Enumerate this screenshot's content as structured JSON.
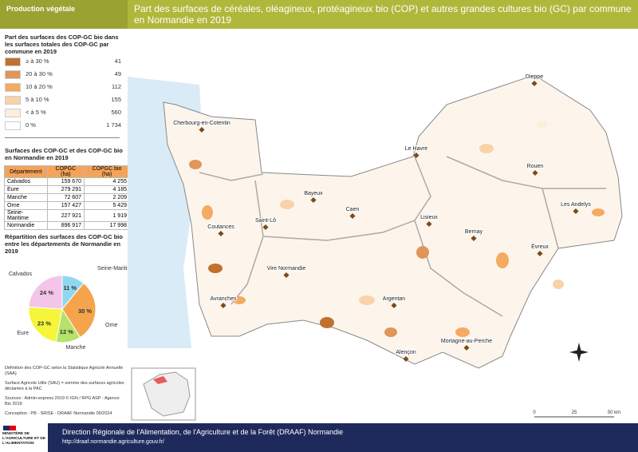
{
  "header": {
    "tag": "Production végétale",
    "title": "Part des surfaces de céréales, oléagineux, protéagineux bio (COP) et autres grandes cultures bio (GC) par commune en Normandie en 2019"
  },
  "legend": {
    "title": "Part des surfaces des COP-GC bio dans les surfaces totales des COP-GC par  commune en 2019",
    "classes": [
      {
        "label": "≥ à 30 %",
        "count": "41",
        "color": "#c0712f"
      },
      {
        "label": "20 à 30 %",
        "count": "49",
        "color": "#e0965a"
      },
      {
        "label": "10 à 20 %",
        "count": "112",
        "color": "#f4aa62"
      },
      {
        "label": "5 à 10 %",
        "count": "155",
        "color": "#f9d2a8"
      },
      {
        "label": "< à 5 %",
        "count": "560",
        "color": "#fdeedd"
      },
      {
        "label": "0 %",
        "count": "1 734",
        "color": "#ffffff"
      }
    ]
  },
  "table": {
    "title": "Surfaces des COP-GC et des COP-GC bio en Normandie en 2019",
    "header": [
      "Département",
      "COPGC (ha)",
      "COPGC bio (ha)"
    ],
    "rows": [
      [
        "Calvados",
        "159 670",
        "4 255"
      ],
      [
        "Eure",
        "279 291",
        "4 185"
      ],
      [
        "Manche",
        "72 607",
        "2 209"
      ],
      [
        "Orne",
        "157 427",
        "5 429"
      ],
      [
        "Seine-Maritime",
        "227 921",
        "1 919"
      ],
      [
        "Normandie",
        "896 917",
        "17 998"
      ]
    ]
  },
  "chart_data": {
    "type": "pie",
    "title": "Répartition des surfaces des COP-GC bio entre les départements de Normandie en 2019",
    "categories": [
      "Seine-Maritime",
      "Orne",
      "Manche",
      "Eure",
      "Calvados"
    ],
    "values": [
      11,
      30,
      12,
      23,
      24
    ],
    "value_labels": [
      "11 %",
      "30 %",
      "12 %",
      "23 %",
      "24 %"
    ],
    "colors": [
      "#8fd8ef",
      "#f6a44c",
      "#b5e36a",
      "#f5f53a",
      "#f4c5e8"
    ]
  },
  "notes": [
    "Définition des COP-GC selon la Statistique Agricole Annuelle (SAA)",
    "Surface Agricole Utile (SAU) = somme des surfaces agricoles déclarées à la PAC",
    "Sources       : Admin-express 2019 © IGN / RPG ASP - Agence Bio 2019",
    "Conception : PB - SRISE - DRAAF Normandie 09/2024"
  ],
  "map": {
    "cities": [
      "Dieppe",
      "Cherbourg-en-Cotentin",
      "Le Havre",
      "Rouen",
      "Bayeux",
      "Caen",
      "Lisieux",
      "Les Andelys",
      "Saint-Lô",
      "Coutances",
      "Bernay",
      "Évreux",
      "Vire Normandie",
      "Avranches",
      "Argentan",
      "Alençon",
      "Mortagne-au-Perche"
    ],
    "scale": [
      "0",
      "25",
      "50 km"
    ]
  },
  "footer": {
    "ministry": "MINISTÈRE DE L'AGRICULTURE ET DE L'ALIMENTATION",
    "org": "Direction Régionale de l'Alimentation, de l'Agriculture et de la Forêt (DRAAF) Normandie",
    "url": "http://draaf.normandie.agriculture.gouv.fr/"
  }
}
